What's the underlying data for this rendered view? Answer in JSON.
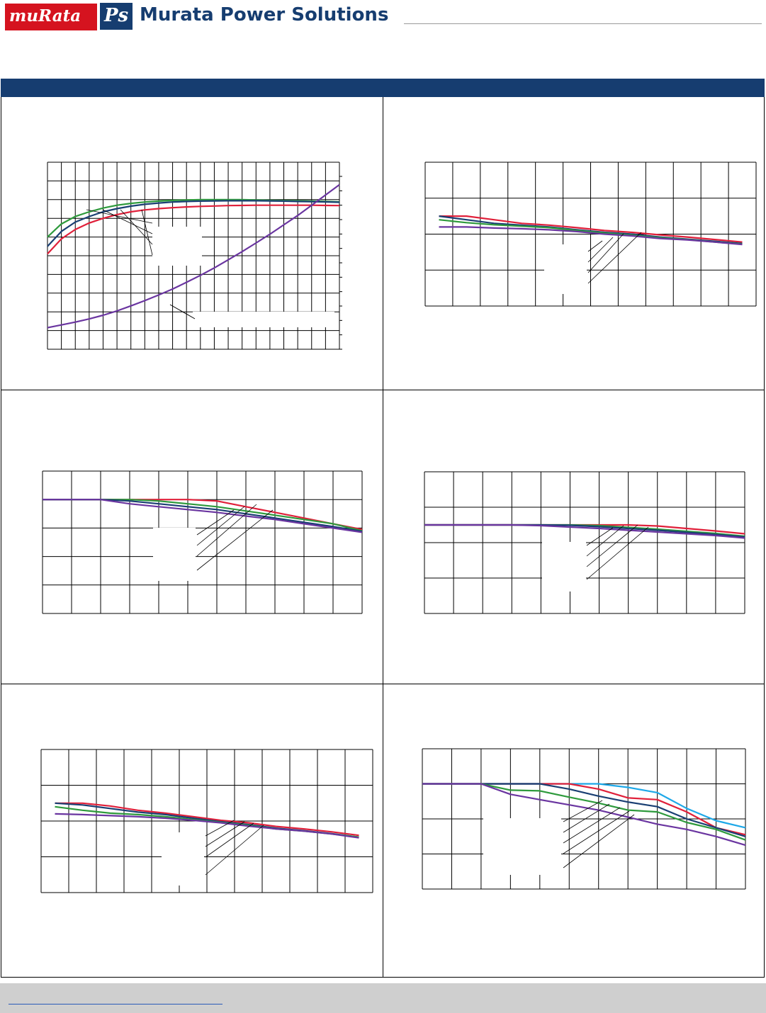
{
  "header": {
    "brand_murata": "muRata",
    "brand_ps": "Ps",
    "company_name": "Murata Power Solutions"
  },
  "colors": {
    "band": "#163d70",
    "red": "#e0203a",
    "green": "#2e9a3c",
    "navy": "#1a3f73",
    "purple": "#6a35a0",
    "cyan": "#1ea8e8",
    "grid": "#000000"
  },
  "chart_data": [
    {
      "type": "line",
      "grid": true,
      "xlim": [
        0,
        21
      ],
      "ylim": [
        0,
        10
      ],
      "ytick_count": 13,
      "series": [
        {
          "color": "green",
          "x": [
            0,
            1,
            2,
            3,
            4,
            5,
            6,
            7,
            8,
            9,
            10,
            11,
            12,
            13,
            14,
            15,
            16,
            17,
            18,
            19,
            20,
            21
          ],
          "y": [
            6.0,
            6.7,
            7.1,
            7.35,
            7.55,
            7.7,
            7.8,
            7.87,
            7.92,
            7.96,
            7.98,
            8.0,
            8.0,
            8.0,
            8.0,
            7.98,
            7.96,
            7.95,
            7.94,
            7.92,
            7.9,
            7.88
          ]
        },
        {
          "color": "navy",
          "x": [
            0,
            1,
            2,
            3,
            4,
            5,
            6,
            7,
            8,
            9,
            10,
            11,
            12,
            13,
            14,
            15,
            16,
            17,
            18,
            19,
            20,
            21
          ],
          "y": [
            5.5,
            6.3,
            6.8,
            7.1,
            7.35,
            7.52,
            7.65,
            7.75,
            7.82,
            7.87,
            7.9,
            7.92,
            7.93,
            7.94,
            7.94,
            7.94,
            7.93,
            7.92,
            7.9,
            7.89,
            7.88,
            7.86
          ]
        },
        {
          "color": "red",
          "x": [
            0,
            1,
            2,
            3,
            4,
            5,
            6,
            7,
            8,
            9,
            10,
            11,
            12,
            13,
            14,
            15,
            16,
            17,
            18,
            19,
            20,
            21
          ],
          "y": [
            5.1,
            5.9,
            6.4,
            6.75,
            7.0,
            7.2,
            7.35,
            7.45,
            7.52,
            7.57,
            7.61,
            7.64,
            7.66,
            7.68,
            7.69,
            7.7,
            7.7,
            7.7,
            7.7,
            7.7,
            7.69,
            7.68
          ]
        },
        {
          "color": "purple",
          "x": [
            0,
            1,
            2,
            3,
            4,
            5,
            6,
            7,
            8,
            9,
            10,
            11,
            12,
            13,
            14,
            15,
            16,
            17,
            18,
            19,
            20,
            21
          ],
          "y": [
            1.15,
            1.3,
            1.45,
            1.62,
            1.82,
            2.05,
            2.32,
            2.6,
            2.9,
            3.22,
            3.58,
            3.95,
            4.35,
            4.78,
            5.22,
            5.68,
            6.15,
            6.65,
            7.15,
            7.7,
            8.25,
            8.8
          ]
        }
      ]
    },
    {
      "type": "line",
      "grid": true,
      "xlim": [
        0,
        12
      ],
      "ylim": [
        0,
        4
      ],
      "series": [
        {
          "color": "red",
          "x": [
            0.5,
            1.5,
            2.5,
            3.5,
            4.5,
            5.5,
            6.5,
            7.5,
            8.5,
            9.5,
            10.5,
            11.5
          ],
          "y": [
            2.5,
            2.5,
            2.4,
            2.3,
            2.25,
            2.18,
            2.1,
            2.05,
            1.98,
            1.92,
            1.85,
            1.78
          ]
        },
        {
          "color": "navy",
          "x": [
            0.5,
            1.5,
            2.5,
            3.5,
            4.5,
            5.5,
            6.5,
            7.5,
            8.5,
            9.5,
            10.5,
            11.5
          ],
          "y": [
            2.5,
            2.4,
            2.3,
            2.25,
            2.2,
            2.12,
            2.05,
            2.0,
            1.92,
            1.86,
            1.8,
            1.74
          ]
        },
        {
          "color": "green",
          "x": [
            0.5,
            1.5,
            2.5,
            3.5,
            4.5,
            5.5,
            6.5,
            7.5,
            8.5,
            9.5,
            10.5,
            11.5
          ],
          "y": [
            2.4,
            2.32,
            2.26,
            2.22,
            2.18,
            2.1,
            2.03,
            1.97,
            1.9,
            1.85,
            1.78,
            1.72
          ]
        },
        {
          "color": "purple",
          "x": [
            0.5,
            1.5,
            2.5,
            3.5,
            4.5,
            5.5,
            6.5,
            7.5,
            8.5,
            9.5,
            10.5,
            11.5
          ],
          "y": [
            2.2,
            2.2,
            2.17,
            2.15,
            2.12,
            2.07,
            2.0,
            1.95,
            1.88,
            1.84,
            1.78,
            1.71
          ]
        }
      ]
    },
    {
      "type": "line",
      "grid": true,
      "xlim": [
        0,
        11
      ],
      "ylim": [
        0,
        5
      ],
      "series": [
        {
          "color": "red",
          "x": [
            0,
            1,
            2,
            3,
            4,
            5,
            6,
            7,
            8,
            9,
            10,
            11
          ],
          "y": [
            4.0,
            4.0,
            4.0,
            4.0,
            4.0,
            4.0,
            3.95,
            3.75,
            3.55,
            3.35,
            3.15,
            2.95
          ]
        },
        {
          "color": "green",
          "x": [
            0,
            1,
            2,
            3,
            4,
            5,
            6,
            7,
            8,
            9,
            10,
            11
          ],
          "y": [
            4.0,
            4.0,
            4.0,
            4.0,
            3.95,
            3.85,
            3.75,
            3.6,
            3.45,
            3.3,
            3.15,
            2.9
          ]
        },
        {
          "color": "navy",
          "x": [
            0,
            1,
            2,
            3,
            4,
            5,
            6,
            7,
            8,
            9,
            10,
            11
          ],
          "y": [
            4.0,
            4.0,
            4.0,
            3.95,
            3.85,
            3.75,
            3.65,
            3.5,
            3.35,
            3.2,
            3.05,
            2.88
          ]
        },
        {
          "color": "purple",
          "x": [
            0,
            1,
            2,
            3,
            4,
            5,
            6,
            7,
            8,
            9,
            10,
            11
          ],
          "y": [
            4.0,
            4.0,
            4.0,
            3.85,
            3.75,
            3.65,
            3.55,
            3.42,
            3.3,
            3.15,
            3.0,
            2.85
          ]
        }
      ]
    },
    {
      "type": "line",
      "grid": true,
      "xlim": [
        0,
        11
      ],
      "ylim": [
        0,
        4
      ],
      "series": [
        {
          "color": "red",
          "x": [
            0,
            1,
            2,
            3,
            4,
            5,
            6,
            7,
            8,
            9,
            10,
            11
          ],
          "y": [
            2.5,
            2.5,
            2.5,
            2.5,
            2.5,
            2.5,
            2.5,
            2.5,
            2.47,
            2.4,
            2.33,
            2.25
          ]
        },
        {
          "color": "green",
          "x": [
            0,
            1,
            2,
            3,
            4,
            5,
            6,
            7,
            8,
            9,
            10,
            11
          ],
          "y": [
            2.5,
            2.5,
            2.5,
            2.5,
            2.5,
            2.5,
            2.48,
            2.43,
            2.38,
            2.32,
            2.26,
            2.18
          ]
        },
        {
          "color": "navy",
          "x": [
            0,
            1,
            2,
            3,
            4,
            5,
            6,
            7,
            8,
            9,
            10,
            11
          ],
          "y": [
            2.5,
            2.5,
            2.5,
            2.5,
            2.5,
            2.49,
            2.45,
            2.4,
            2.35,
            2.29,
            2.23,
            2.16
          ]
        },
        {
          "color": "purple",
          "x": [
            0,
            1,
            2,
            3,
            4,
            5,
            6,
            7,
            8,
            9,
            10,
            11
          ],
          "y": [
            2.5,
            2.5,
            2.5,
            2.5,
            2.48,
            2.44,
            2.4,
            2.35,
            2.3,
            2.25,
            2.2,
            2.13
          ]
        }
      ]
    },
    {
      "type": "line",
      "grid": true,
      "xlim": [
        0,
        12
      ],
      "ylim": [
        0,
        4
      ],
      "series": [
        {
          "color": "red",
          "x": [
            0.5,
            1.5,
            2.5,
            3.5,
            4.5,
            5.5,
            6.5,
            7.5,
            8.5,
            9.5,
            10.5,
            11.5
          ],
          "y": [
            2.5,
            2.5,
            2.42,
            2.3,
            2.22,
            2.12,
            2.02,
            1.95,
            1.85,
            1.78,
            1.7,
            1.6
          ]
        },
        {
          "color": "navy",
          "x": [
            0.5,
            1.5,
            2.5,
            3.5,
            4.5,
            5.5,
            6.5,
            7.5,
            8.5,
            9.5,
            10.5,
            11.5
          ],
          "y": [
            2.5,
            2.45,
            2.35,
            2.25,
            2.18,
            2.08,
            1.98,
            1.9,
            1.8,
            1.73,
            1.65,
            1.55
          ]
        },
        {
          "color": "green",
          "x": [
            0.5,
            1.5,
            2.5,
            3.5,
            4.5,
            5.5,
            6.5,
            7.5,
            8.5,
            9.5,
            10.5,
            11.5
          ],
          "y": [
            2.4,
            2.3,
            2.22,
            2.18,
            2.12,
            2.04,
            1.96,
            1.88,
            1.78,
            1.72,
            1.64,
            1.55
          ]
        },
        {
          "color": "purple",
          "x": [
            0.5,
            1.5,
            2.5,
            3.5,
            4.5,
            5.5,
            6.5,
            7.5,
            8.5,
            9.5,
            10.5,
            11.5
          ],
          "y": [
            2.2,
            2.18,
            2.15,
            2.12,
            2.08,
            2.02,
            1.95,
            1.86,
            1.78,
            1.72,
            1.64,
            1.53
          ]
        }
      ]
    },
    {
      "type": "line",
      "grid": true,
      "xlim": [
        0,
        11
      ],
      "ylim": [
        0,
        4
      ],
      "series": [
        {
          "color": "cyan",
          "x": [
            0,
            1,
            2,
            3,
            4,
            5,
            6,
            7,
            8,
            9,
            10,
            11
          ],
          "y": [
            3.0,
            3.0,
            3.0,
            3.0,
            3.0,
            3.0,
            3.0,
            2.9,
            2.75,
            2.3,
            1.95,
            1.75
          ]
        },
        {
          "color": "red",
          "x": [
            0,
            1,
            2,
            3,
            4,
            5,
            6,
            7,
            8,
            9,
            10,
            11
          ],
          "y": [
            3.0,
            3.0,
            3.0,
            3.0,
            3.0,
            3.0,
            2.85,
            2.6,
            2.55,
            2.2,
            1.75,
            1.55
          ]
        },
        {
          "color": "navy",
          "x": [
            0,
            1,
            2,
            3,
            4,
            5,
            6,
            7,
            8,
            9,
            10,
            11
          ],
          "y": [
            3.0,
            3.0,
            3.0,
            3.0,
            3.0,
            2.85,
            2.65,
            2.48,
            2.35,
            2.0,
            1.75,
            1.5
          ]
        },
        {
          "color": "green",
          "x": [
            0,
            1,
            2,
            3,
            4,
            5,
            6,
            7,
            8,
            9,
            10,
            11
          ],
          "y": [
            3.0,
            3.0,
            3.0,
            2.82,
            2.8,
            2.62,
            2.45,
            2.25,
            2.2,
            1.9,
            1.7,
            1.4
          ]
        },
        {
          "color": "purple",
          "x": [
            0,
            1,
            2,
            3,
            4,
            5,
            6,
            7,
            8,
            9,
            10,
            11
          ],
          "y": [
            3.0,
            3.0,
            3.0,
            2.7,
            2.55,
            2.4,
            2.25,
            2.05,
            1.85,
            1.7,
            1.5,
            1.25
          ]
        }
      ]
    }
  ]
}
